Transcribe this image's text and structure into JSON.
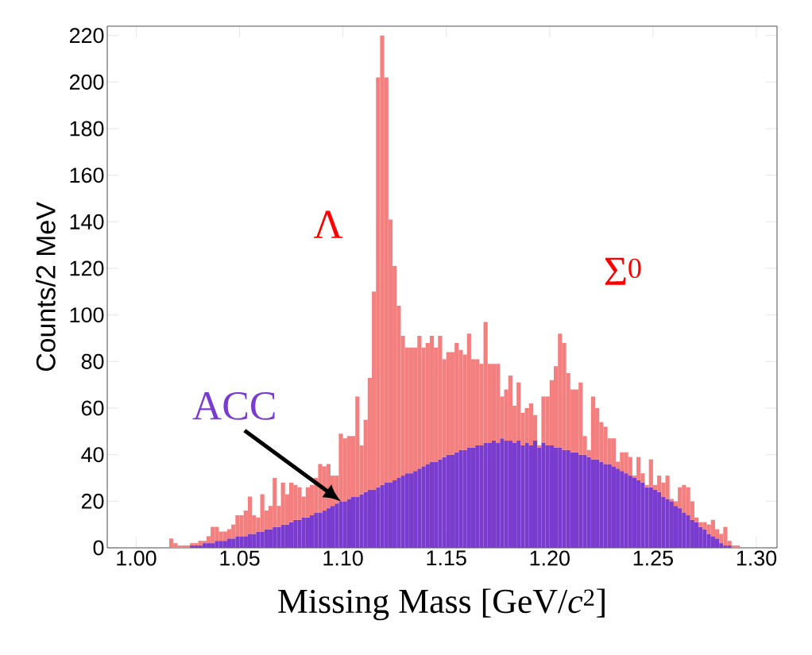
{
  "chart_data": {
    "type": "bar",
    "stacked": true,
    "x": [
      1.017,
      1.019,
      1.021,
      1.023,
      1.025,
      1.027,
      1.029,
      1.031,
      1.033,
      1.035,
      1.037,
      1.039,
      1.041,
      1.043,
      1.045,
      1.047,
      1.049,
      1.051,
      1.053,
      1.055,
      1.057,
      1.059,
      1.061,
      1.063,
      1.065,
      1.067,
      1.069,
      1.071,
      1.073,
      1.075,
      1.077,
      1.079,
      1.081,
      1.083,
      1.085,
      1.087,
      1.089,
      1.091,
      1.093,
      1.095,
      1.097,
      1.099,
      1.101,
      1.103,
      1.105,
      1.107,
      1.109,
      1.111,
      1.113,
      1.115,
      1.117,
      1.119,
      1.121,
      1.123,
      1.125,
      1.127,
      1.129,
      1.131,
      1.133,
      1.135,
      1.137,
      1.139,
      1.141,
      1.143,
      1.145,
      1.147,
      1.149,
      1.151,
      1.153,
      1.155,
      1.157,
      1.159,
      1.161,
      1.163,
      1.165,
      1.167,
      1.169,
      1.171,
      1.173,
      1.175,
      1.177,
      1.179,
      1.181,
      1.183,
      1.185,
      1.187,
      1.189,
      1.191,
      1.193,
      1.195,
      1.197,
      1.199,
      1.201,
      1.203,
      1.205,
      1.207,
      1.209,
      1.211,
      1.213,
      1.215,
      1.217,
      1.219,
      1.221,
      1.223,
      1.225,
      1.227,
      1.229,
      1.231,
      1.233,
      1.235,
      1.237,
      1.239,
      1.241,
      1.243,
      1.245,
      1.247,
      1.249,
      1.251,
      1.253,
      1.255,
      1.257,
      1.259,
      1.261,
      1.263,
      1.265,
      1.267,
      1.269,
      1.271,
      1.273,
      1.275,
      1.277,
      1.279,
      1.281,
      1.283,
      1.285,
      1.287,
      1.289,
      1.291
    ],
    "xlabel": "Missing Mass [GeV/*c*$^{2}$]",
    "ylabel": "Counts/2 MeV",
    "series": [
      {
        "name": "ACC",
        "color": "#7a3ccf",
        "values": [
          0,
          0,
          0,
          0,
          0,
          1,
          1,
          1,
          2,
          2,
          2,
          3,
          3,
          3,
          4,
          4,
          5,
          5,
          5,
          6,
          6,
          7,
          7,
          8,
          8,
          9,
          9,
          10,
          10,
          11,
          12,
          12,
          13,
          13,
          14,
          15,
          15,
          16,
          17,
          18,
          19,
          20,
          20,
          21,
          22,
          22,
          23,
          24,
          25,
          25,
          26,
          27,
          28,
          28,
          29,
          30,
          31,
          32,
          32,
          33,
          34,
          35,
          36,
          37,
          37,
          38,
          39,
          40,
          40,
          41,
          42,
          42,
          43,
          43,
          44,
          44,
          45,
          45,
          46,
          45,
          47,
          46,
          46,
          45,
          46,
          44,
          45,
          44,
          46,
          43,
          45,
          44,
          44,
          43,
          43,
          42,
          42,
          41,
          41,
          40,
          40,
          39,
          38,
          38,
          37,
          36,
          36,
          35,
          34,
          33,
          32,
          31,
          30,
          29,
          28,
          26,
          26,
          25,
          24,
          22,
          21,
          20,
          18,
          17,
          15,
          14,
          12,
          11,
          9,
          8,
          6,
          5,
          4,
          2,
          1,
          1,
          0,
          0
        ]
      },
      {
        "color": "#f47f7f",
        "values": [
          4,
          2,
          1,
          1,
          1,
          1,
          1,
          2,
          1,
          3,
          7,
          6,
          4,
          4,
          4,
          6,
          9,
          9,
          11,
          16,
          8,
          6,
          16,
          8,
          10,
          21,
          9,
          18,
          13,
          17,
          15,
          14,
          9,
          13,
          13,
          15,
          21,
          19,
          19,
          13,
          12,
          29,
          27,
          27,
          26,
          43,
          21,
          31,
          48,
          85,
          176,
          193,
          174,
          113,
          92,
          74,
          60,
          54,
          54,
          53,
          57,
          51,
          52,
          54,
          49,
          53,
          42,
          44,
          44,
          47,
          43,
          41,
          49,
          38,
          37,
          35,
          52,
          34,
          33,
          34,
          18,
          22,
          28,
          16,
          25,
          14,
          15,
          18,
          11,
          1,
          20,
          21,
          28,
          35,
          49,
          46,
          33,
          27,
          27,
          31,
          8,
          3,
          27,
          22,
          17,
          16,
          11,
          12,
          3,
          8,
          9,
          8,
          1,
          10,
          4,
          1,
          12,
          2,
          7,
          6,
          10,
          1,
          2,
          9,
          12,
          12,
          8,
          2,
          2,
          3,
          4,
          7,
          4,
          4,
          8,
          2,
          1,
          1
        ]
      }
    ],
    "annotations": [
      "Λ",
      "Σ$^{0}$"
    ],
    "xlim": [
      0.986,
      1.31
    ],
    "ylim": [
      0,
      224
    ],
    "xticks": [
      {
        "value": 1.0,
        "label": "1.00"
      },
      {
        "value": 1.05,
        "label": "1.05"
      },
      {
        "value": 1.1,
        "label": "1.10"
      },
      {
        "value": 1.15,
        "label": "1.15"
      },
      {
        "value": 1.2,
        "label": "1.20"
      },
      {
        "value": 1.25,
        "label": "1.25"
      },
      {
        "value": 1.3,
        "label": "1.30"
      }
    ],
    "yticks": [
      0,
      20,
      40,
      60,
      80,
      100,
      120,
      140,
      160,
      180,
      200,
      220
    ]
  }
}
